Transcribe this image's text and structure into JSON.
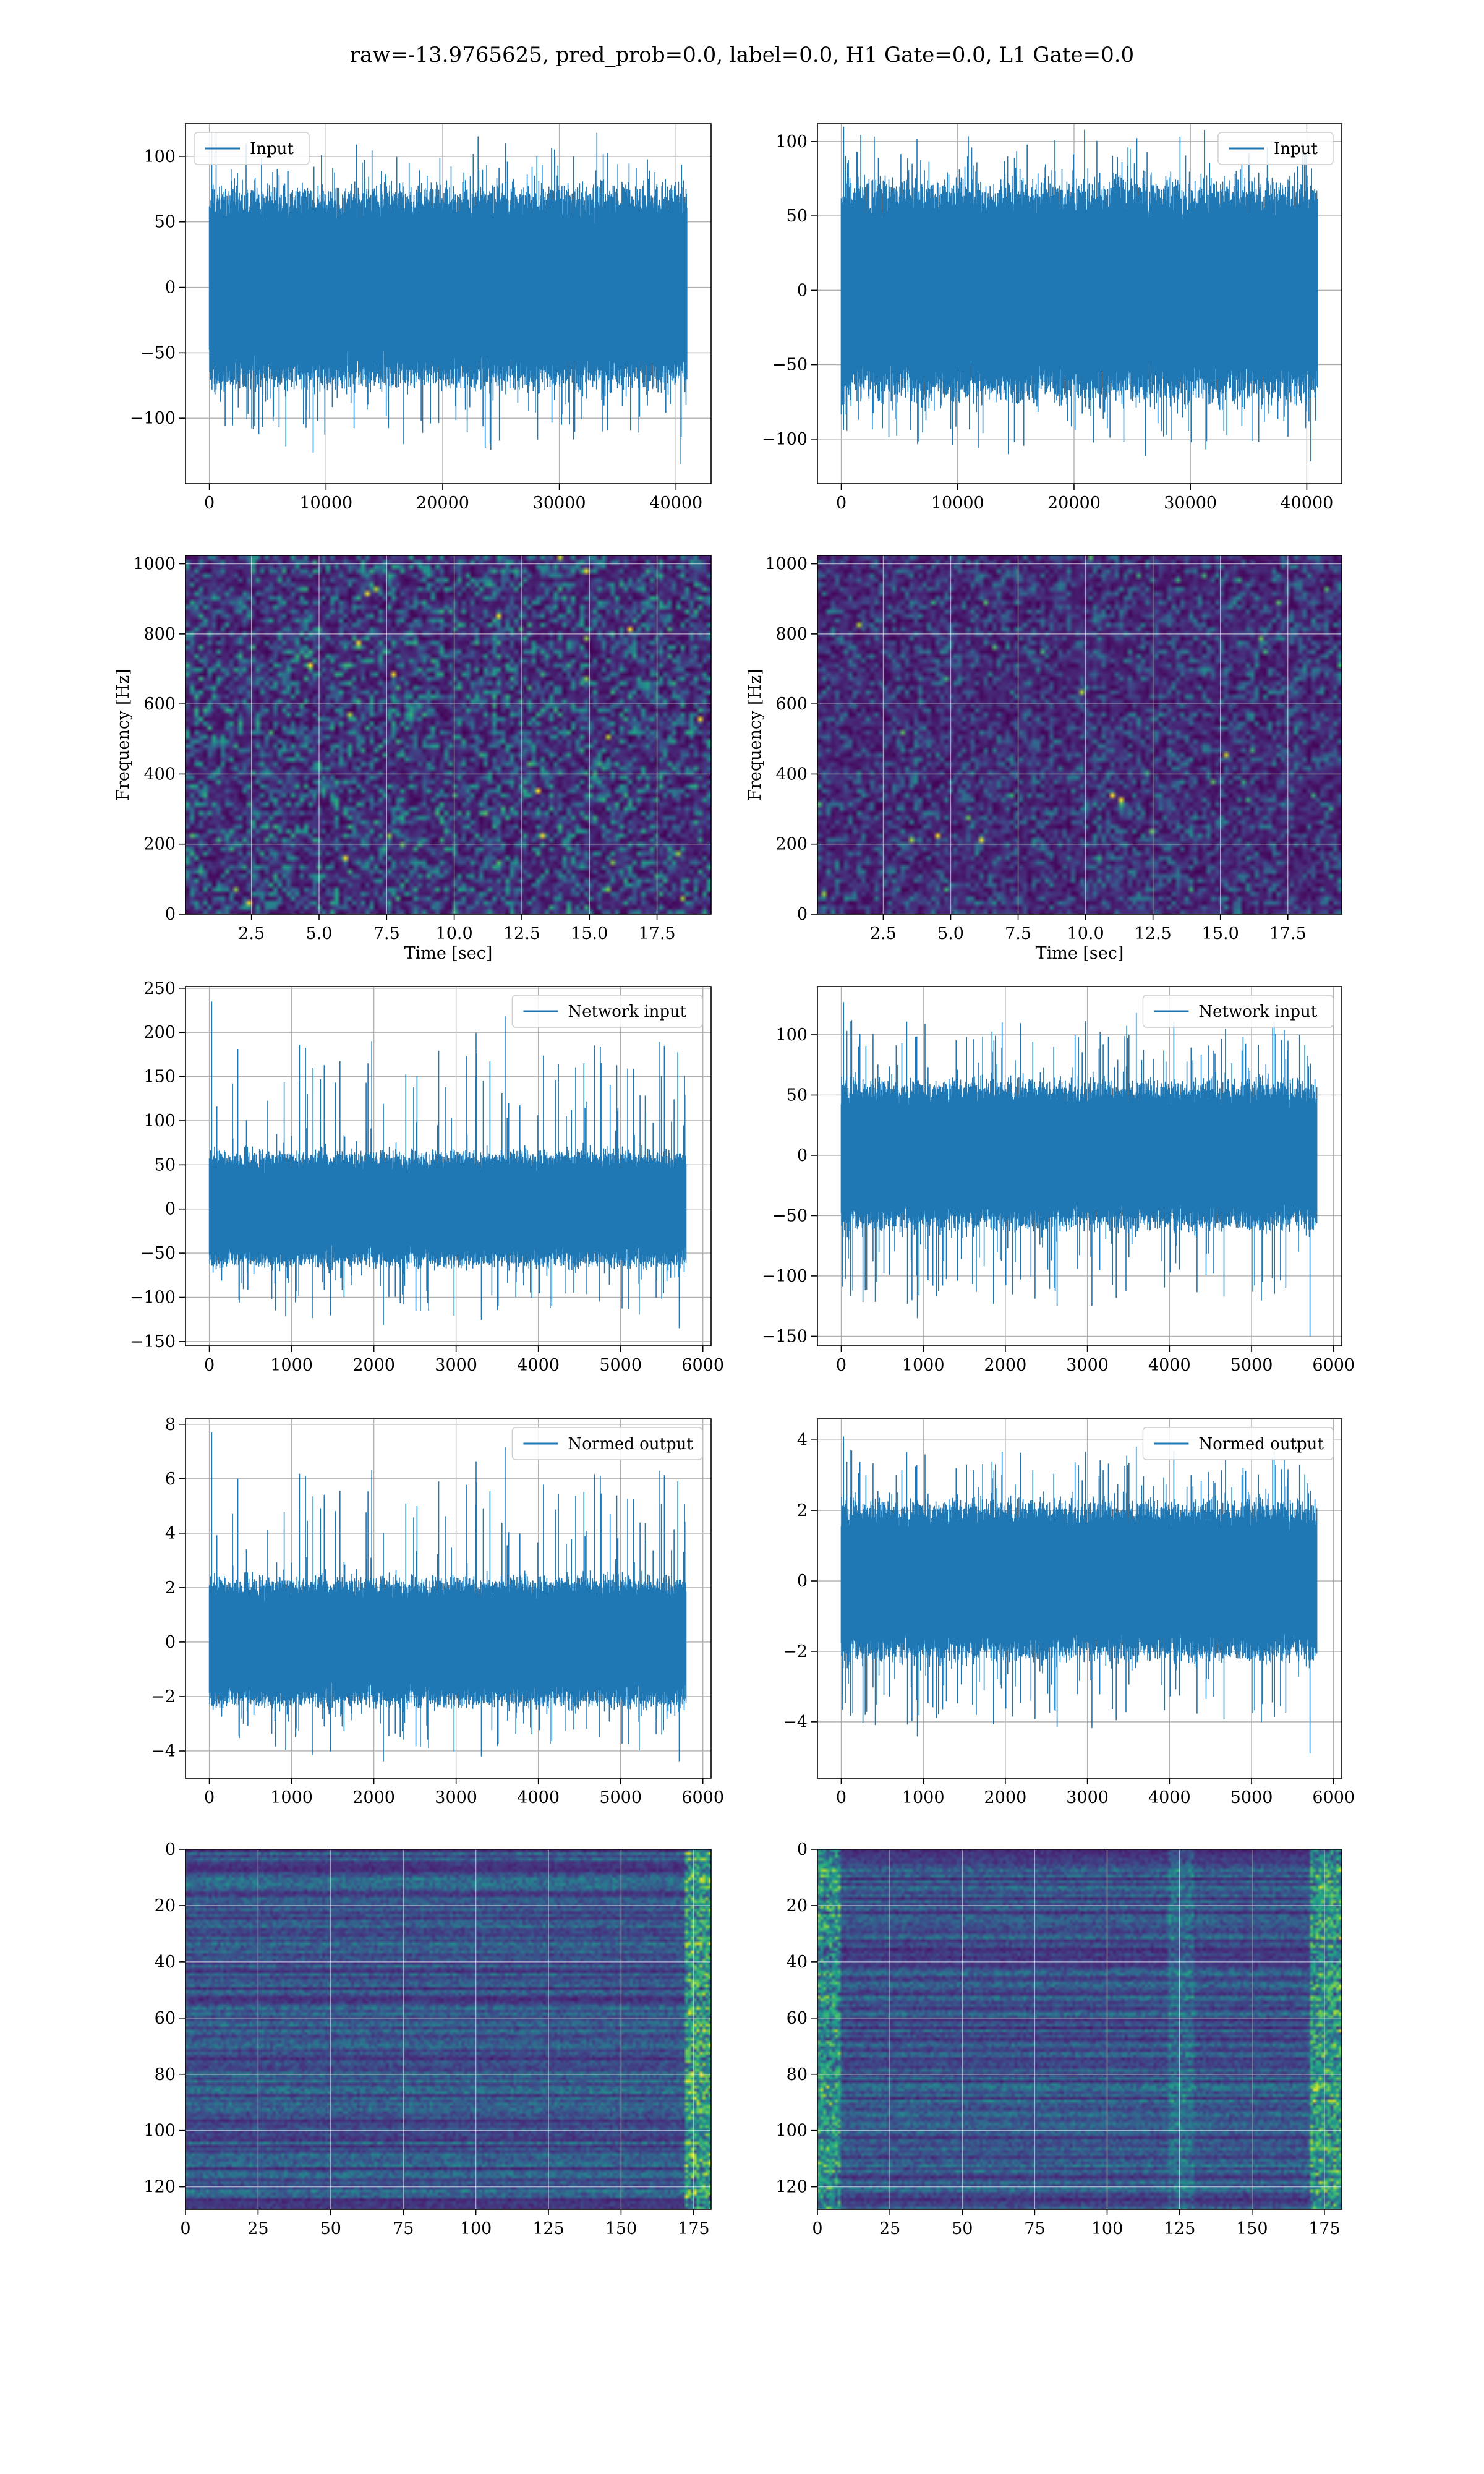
{
  "figure": {
    "title": "raw=-13.9765625, pred_prob=0.0, label=0.0, H1 Gate=0.0, L1 Gate=0.0"
  },
  "chart_data": [
    {
      "id": "input-left",
      "type": "line",
      "legend": "Input",
      "legend_loc": "upper-left",
      "xlim": [
        -2048,
        43008
      ],
      "ylim": [
        -150,
        125
      ],
      "xticks": [
        0,
        10000,
        20000,
        30000,
        40000
      ],
      "xtick_labels": [
        "0",
        "10000",
        "20000",
        "30000",
        "40000"
      ],
      "yticks": [
        -100,
        -50,
        0,
        50,
        100
      ],
      "ytick_labels": [
        "−100",
        "−50",
        "0",
        "50",
        "100"
      ],
      "grid": true,
      "n_points": 40960,
      "band": [
        -65,
        65
      ],
      "spike_range": [
        -135,
        118
      ],
      "seed": 11
    },
    {
      "id": "input-right",
      "type": "line",
      "legend": "Input",
      "legend_loc": "upper-right",
      "xlim": [
        -2048,
        43008
      ],
      "ylim": [
        -130,
        112
      ],
      "xticks": [
        0,
        10000,
        20000,
        30000,
        40000
      ],
      "xtick_labels": [
        "0",
        "10000",
        "20000",
        "30000",
        "40000"
      ],
      "yticks": [
        -100,
        -50,
        0,
        50,
        100
      ],
      "ytick_labels": [
        "−100",
        "−50",
        "0",
        "50",
        "100"
      ],
      "grid": true,
      "n_points": 40960,
      "band": [
        -62,
        62
      ],
      "spike_range": [
        -115,
        110
      ],
      "seed": 23
    },
    {
      "id": "spectrogram-left",
      "type": "heatmap",
      "xlim": [
        0.06,
        19.5
      ],
      "ylim": [
        0,
        1024
      ],
      "xticks": [
        2.5,
        5.0,
        7.5,
        10.0,
        12.5,
        15.0,
        17.5
      ],
      "xtick_labels": [
        "2.5",
        "5.0",
        "7.5",
        "10.0",
        "12.5",
        "15.0",
        "17.5"
      ],
      "yticks": [
        0,
        200,
        400,
        600,
        800,
        1000
      ],
      "ytick_labels": [
        "0",
        "200",
        "400",
        "600",
        "800",
        "1000"
      ],
      "xlabel": "Time [sec]",
      "ylabel": "Frequency [Hz]",
      "grid": true,
      "seed": 5,
      "intensity": 0.55
    },
    {
      "id": "spectrogram-right",
      "type": "heatmap",
      "xlim": [
        0.06,
        19.5
      ],
      "ylim": [
        0,
        1024
      ],
      "xticks": [
        2.5,
        5.0,
        7.5,
        10.0,
        12.5,
        15.0,
        17.5
      ],
      "xtick_labels": [
        "2.5",
        "5.0",
        "7.5",
        "10.0",
        "12.5",
        "15.0",
        "17.5"
      ],
      "yticks": [
        0,
        200,
        400,
        600,
        800,
        1000
      ],
      "ytick_labels": [
        "0",
        "200",
        "400",
        "600",
        "800",
        "1000"
      ],
      "xlabel": "Time [sec]",
      "ylabel": "Frequency [Hz]",
      "grid": true,
      "seed": 17,
      "intensity": 0.38
    },
    {
      "id": "network-input-left",
      "type": "line",
      "legend": "Network input",
      "legend_loc": "upper-right",
      "xlim": [
        -290,
        6100
      ],
      "ylim": [
        -155,
        252
      ],
      "xticks": [
        0,
        1000,
        2000,
        3000,
        4000,
        5000,
        6000
      ],
      "xtick_labels": [
        "0",
        "1000",
        "2000",
        "3000",
        "4000",
        "5000",
        "6000"
      ],
      "yticks": [
        -150,
        -100,
        -50,
        0,
        50,
        100,
        150,
        200,
        250
      ],
      "ytick_labels": [
        "−150",
        "−100",
        "−50",
        "0",
        "50",
        "100",
        "150",
        "200",
        "250"
      ],
      "grid": true,
      "n_points": 5800,
      "band": [
        -55,
        55
      ],
      "spike_range": [
        -135,
        235
      ],
      "seed": 31
    },
    {
      "id": "network-input-right",
      "type": "line",
      "legend": "Network input",
      "legend_loc": "upper-right",
      "xlim": [
        -290,
        6100
      ],
      "ylim": [
        -158,
        140
      ],
      "xticks": [
        0,
        1000,
        2000,
        3000,
        4000,
        5000,
        6000
      ],
      "xtick_labels": [
        "0",
        "1000",
        "2000",
        "3000",
        "4000",
        "5000",
        "6000"
      ],
      "yticks": [
        -150,
        -100,
        -50,
        0,
        50,
        100
      ],
      "ytick_labels": [
        "−150",
        "−100",
        "−50",
        "0",
        "50",
        "100"
      ],
      "grid": true,
      "n_points": 5800,
      "band": [
        -52,
        52
      ],
      "spike_range": [
        -150,
        127
      ],
      "seed": 43
    },
    {
      "id": "normed-output-left",
      "type": "line",
      "legend": "Normed output",
      "legend_loc": "upper-right",
      "xlim": [
        -290,
        6100
      ],
      "ylim": [
        -5,
        8.2
      ],
      "xticks": [
        0,
        1000,
        2000,
        3000,
        4000,
        5000,
        6000
      ],
      "xtick_labels": [
        "0",
        "1000",
        "2000",
        "3000",
        "4000",
        "5000",
        "6000"
      ],
      "yticks": [
        -4,
        -2,
        0,
        2,
        4,
        6,
        8
      ],
      "ytick_labels": [
        "−4",
        "−2",
        "0",
        "2",
        "4",
        "6",
        "8"
      ],
      "grid": true,
      "n_points": 5800,
      "band": [
        -2.0,
        2.0
      ],
      "spike_range": [
        -4.4,
        7.7
      ],
      "seed": 31
    },
    {
      "id": "normed-output-right",
      "type": "line",
      "legend": "Normed output",
      "legend_loc": "upper-right",
      "xlim": [
        -290,
        6100
      ],
      "ylim": [
        -5.6,
        4.6
      ],
      "xticks": [
        0,
        1000,
        2000,
        3000,
        4000,
        5000,
        6000
      ],
      "xtick_labels": [
        "0",
        "1000",
        "2000",
        "3000",
        "4000",
        "5000",
        "6000"
      ],
      "yticks": [
        -4,
        -2,
        0,
        2,
        4
      ],
      "ytick_labels": [
        "−4",
        "−2",
        "0",
        "2",
        "4"
      ],
      "grid": true,
      "n_points": 5800,
      "band": [
        -1.9,
        1.9
      ],
      "spike_range": [
        -4.9,
        4.1
      ],
      "seed": 43
    },
    {
      "id": "features-left",
      "type": "heatmap",
      "xlim": [
        0,
        181
      ],
      "ylim": [
        128,
        0
      ],
      "xticks": [
        0,
        25,
        50,
        75,
        100,
        125,
        150,
        175
      ],
      "xtick_labels": [
        "0",
        "25",
        "50",
        "75",
        "100",
        "125",
        "150",
        "175"
      ],
      "yticks": [
        0,
        20,
        40,
        60,
        80,
        100,
        120
      ],
      "ytick_labels": [
        "0",
        "20",
        "40",
        "60",
        "80",
        "100",
        "120"
      ],
      "grid": true,
      "seed": 59,
      "rows": 128,
      "cols": 181,
      "hot_edge": "right"
    },
    {
      "id": "features-right",
      "type": "heatmap",
      "xlim": [
        0,
        181
      ],
      "ylim": [
        128,
        0
      ],
      "xticks": [
        0,
        25,
        50,
        75,
        100,
        125,
        150,
        175
      ],
      "xtick_labels": [
        "0",
        "25",
        "50",
        "75",
        "100",
        "125",
        "150",
        "175"
      ],
      "yticks": [
        0,
        20,
        40,
        60,
        80,
        100,
        120
      ],
      "ytick_labels": [
        "0",
        "20",
        "40",
        "60",
        "80",
        "100",
        "120"
      ],
      "grid": true,
      "seed": 71,
      "rows": 128,
      "cols": 181,
      "hot_edge": "both"
    }
  ]
}
